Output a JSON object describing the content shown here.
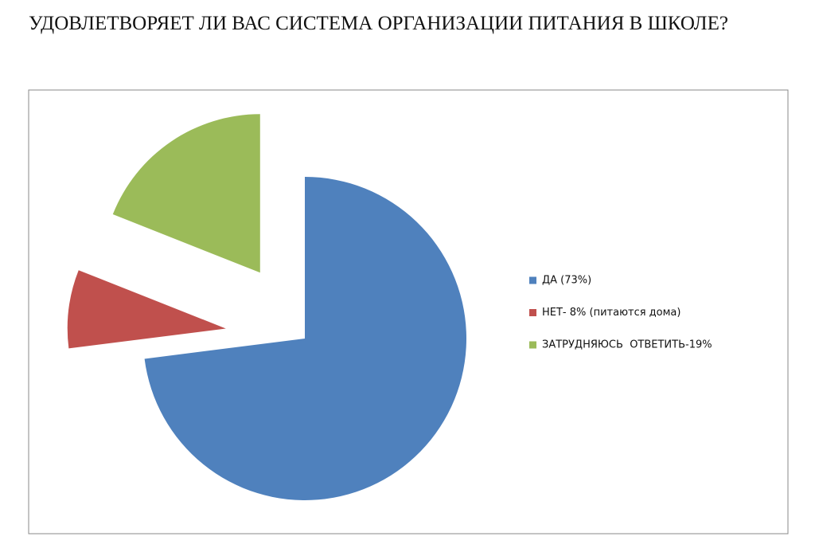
{
  "chart_data": {
    "type": "pie",
    "title": "УДОВЛЕТВОРЯЕТ ЛИ ВАС СИСТЕМА ОРГАНИЗАЦИИ ПИТАНИЯ В ШКОЛЕ?",
    "categories": [
      "ДА (73%)",
      "НЕТ- 8% (питаются дома)",
      "ЗАТРУДНЯЮСЬ  ОТВЕТИТЬ-19%"
    ],
    "values": [
      73,
      8,
      19
    ],
    "colors": [
      "#4f81bd",
      "#c0504d",
      "#9bbb59"
    ],
    "legend": "right"
  }
}
